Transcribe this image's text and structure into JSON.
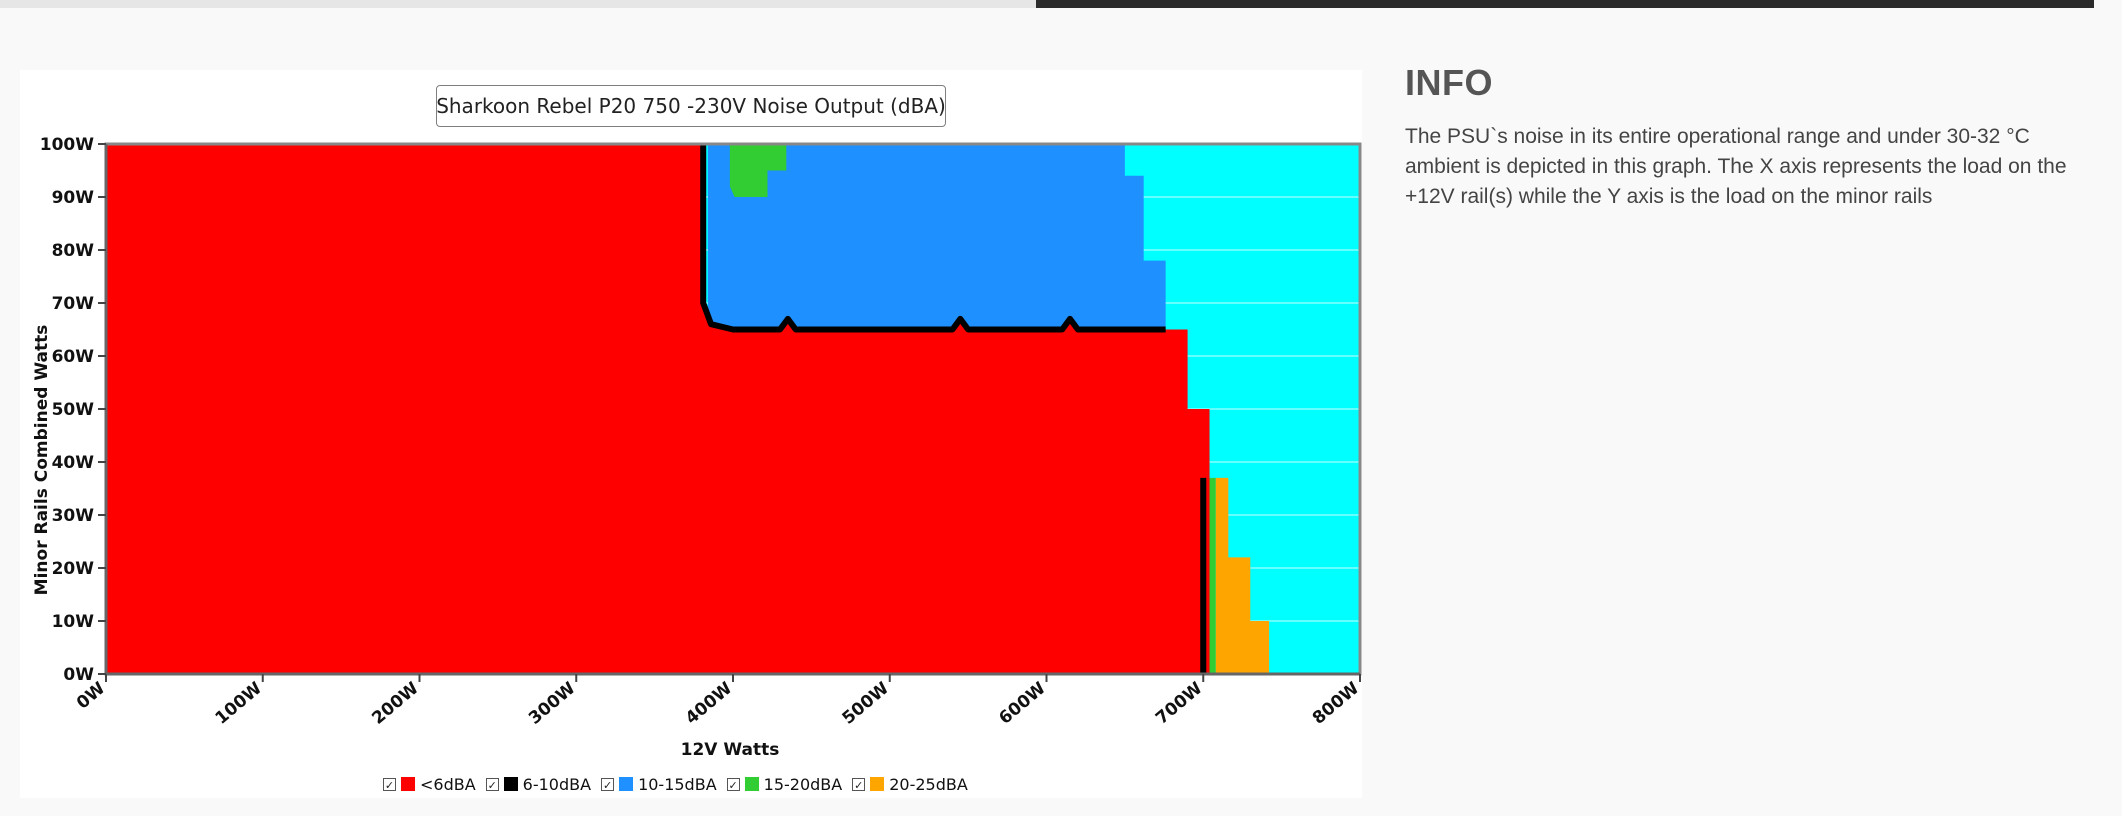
{
  "info": {
    "title": "INFO",
    "text": "The PSU`s noise in its entire operational range and under 30-32 °C ambient is depicted in this graph. The X axis represents the load on the +12V rail(s) while the Y axis is the load on the minor rails"
  },
  "chart_data": {
    "type": "area",
    "title": "Sharkoon Rebel P20 750 -230V Noise Output (dBA)",
    "xlabel": "12V Watts",
    "ylabel": "Minor Rails Combined Watts",
    "xlim": [
      0,
      800
    ],
    "ylim": [
      0,
      100
    ],
    "x_ticks": [
      "0W",
      "100W",
      "200W",
      "300W",
      "400W",
      "500W",
      "600W",
      "700W",
      "800W"
    ],
    "y_ticks": [
      "0W",
      "10W",
      "20W",
      "30W",
      "40W",
      "50W",
      "60W",
      "70W",
      "80W",
      "90W",
      "100W"
    ],
    "grid": true,
    "legend_position": "bottom",
    "background_color": "#00ffff",
    "series": [
      {
        "name": "<6dBA",
        "color": "#ff0000"
      },
      {
        "name": "6-10dBA",
        "color": "#000000"
      },
      {
        "name": "10-15dBA",
        "color": "#1e90ff"
      },
      {
        "name": "15-20dBA",
        "color": "#32cd32"
      },
      {
        "name": "20-25dBA",
        "color": "#ffa500"
      }
    ],
    "regions": [
      {
        "series": "10-15dBA",
        "polygon": [
          [
            384,
            100
          ],
          [
            650,
            100
          ],
          [
            650,
            94
          ],
          [
            662,
            94
          ],
          [
            662,
            78
          ],
          [
            676,
            78
          ],
          [
            676,
            65
          ],
          [
            384,
            65
          ]
        ]
      },
      {
        "series": "<6dBA",
        "polygon": [
          [
            0,
            0
          ],
          [
            0,
            100
          ],
          [
            381,
            100
          ],
          [
            381,
            70
          ],
          [
            386,
            66
          ],
          [
            400,
            65
          ],
          [
            430,
            65
          ],
          [
            435,
            67
          ],
          [
            440,
            65
          ],
          [
            540,
            65
          ],
          [
            545,
            67
          ],
          [
            550,
            65
          ],
          [
            610,
            65
          ],
          [
            615,
            67
          ],
          [
            620,
            65
          ],
          [
            690,
            65
          ],
          [
            690,
            50
          ],
          [
            704,
            50
          ],
          [
            704,
            0
          ]
        ]
      },
      {
        "series": "6-10dBA",
        "polyline": [
          [
            381,
            100
          ],
          [
            381,
            70
          ],
          [
            386,
            66
          ],
          [
            400,
            65
          ],
          [
            430,
            65
          ],
          [
            435,
            67
          ],
          [
            440,
            65
          ],
          [
            540,
            65
          ],
          [
            545,
            67
          ],
          [
            550,
            65
          ],
          [
            610,
            65
          ],
          [
            615,
            67
          ],
          [
            620,
            65
          ],
          [
            676,
            65
          ]
        ]
      },
      {
        "series": "6-10dBA",
        "polyline": [
          [
            700,
            0
          ],
          [
            700,
            37
          ]
        ]
      },
      {
        "series": "15-20dBA",
        "polygon": [
          [
            398,
            100
          ],
          [
            434,
            100
          ],
          [
            434,
            95
          ],
          [
            422,
            95
          ],
          [
            422,
            90
          ],
          [
            401,
            90
          ],
          [
            398,
            92
          ]
        ]
      },
      {
        "series": "15-20dBA",
        "polygon": [
          [
            704,
            0
          ],
          [
            704,
            37
          ],
          [
            708,
            37
          ],
          [
            708,
            0
          ]
        ]
      },
      {
        "series": "20-25dBA",
        "polygon": [
          [
            708,
            0
          ],
          [
            708,
            37
          ],
          [
            716,
            37
          ],
          [
            716,
            22
          ],
          [
            730,
            22
          ],
          [
            730,
            10
          ],
          [
            742,
            10
          ],
          [
            742,
            0
          ]
        ]
      }
    ]
  }
}
